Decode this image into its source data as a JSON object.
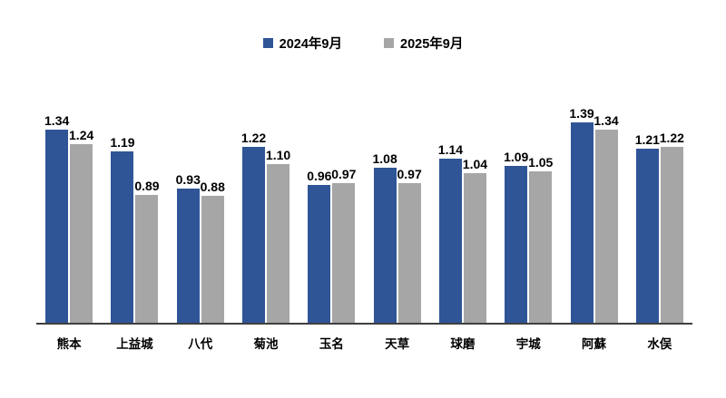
{
  "chart_data": {
    "type": "bar",
    "title": "",
    "xlabel": "",
    "ylabel": "",
    "ylim": [
      0,
      1.6
    ],
    "grid": false,
    "value_labels": true,
    "value_format_decimals": 2,
    "legend_position": "top-center",
    "background_color": "#ffffff",
    "axis_line_color": "#3f3f3f",
    "label_color": "#000000",
    "categories": [
      "熊本",
      "上益城",
      "八代",
      "菊池",
      "玉名",
      "天草",
      "球磨",
      "宇城",
      "阿蘇",
      "水俣"
    ],
    "series": [
      {
        "name": "2024年9月",
        "color": "#2F5597",
        "values": [
          1.34,
          1.19,
          0.93,
          1.22,
          0.96,
          1.08,
          1.14,
          1.09,
          1.39,
          1.21
        ]
      },
      {
        "name": "2025年9月",
        "color": "#A6A6A6",
        "values": [
          1.24,
          0.89,
          0.88,
          1.1,
          0.97,
          0.97,
          1.04,
          1.05,
          1.34,
          1.22
        ]
      }
    ]
  }
}
